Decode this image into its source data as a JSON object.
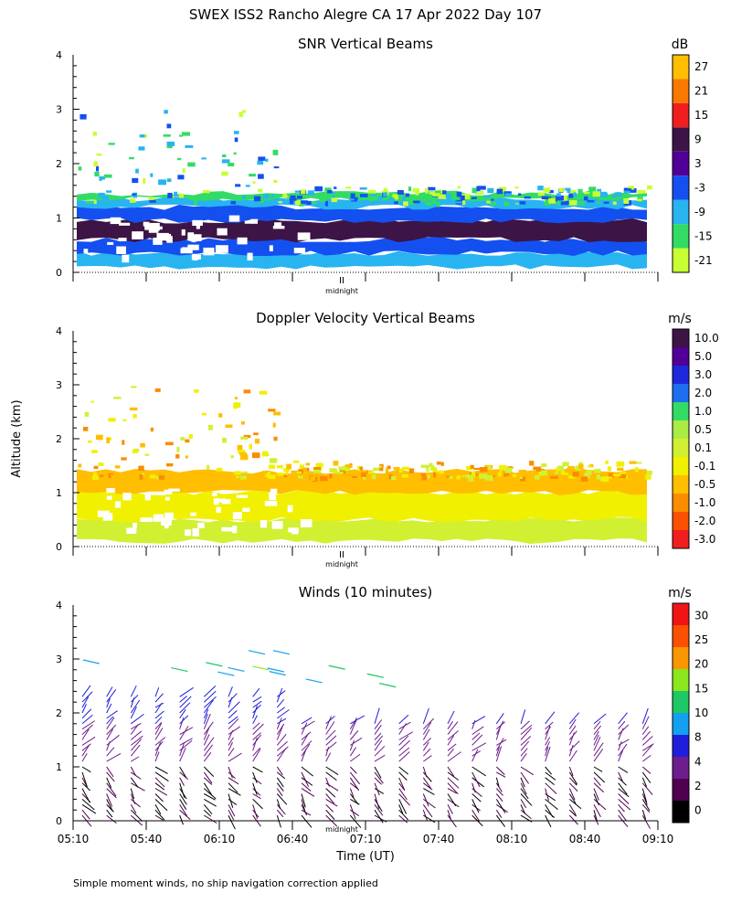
{
  "figure": {
    "title": "SWEX ISS2 Rancho Alegre CA  17 Apr 2022 Day 107",
    "ylabel": "Altitude (km)",
    "xlabel": "Time (UT)",
    "footnote": "Simple moment winds, no ship navigation correction applied",
    "midnight_label": "midnight",
    "midnight_marker": "II"
  },
  "chart_data": [
    {
      "type": "heatmap",
      "title": "SNR Vertical Beams",
      "ylabel": "Altitude (km)",
      "ylim": [
        0,
        4
      ],
      "yticks": [
        "0",
        "1",
        "2",
        "3",
        "4"
      ],
      "xlim_minutes_utc": [
        310,
        550
      ],
      "colorbar": {
        "unit": "dB",
        "colors": [
          "#c8ff32",
          "#32dc64",
          "#28b4f0",
          "#1450f0",
          "#500096",
          "#3c1446",
          "#f01e1e",
          "#fa7800",
          "#ffbe00"
        ],
        "labels": [
          "-21",
          "-15",
          "-9",
          "-3",
          "3",
          "9",
          "15",
          "21",
          "27"
        ]
      },
      "layers": [
        {
          "bottom_km": 0.1,
          "top_km": 0.35,
          "color": "#28b4f0"
        },
        {
          "bottom_km": 0.35,
          "top_km": 0.6,
          "color": "#1450f0"
        },
        {
          "bottom_km": 0.6,
          "top_km": 0.95,
          "color": "#3c1446"
        },
        {
          "bottom_km": 0.95,
          "top_km": 1.2,
          "color": "#1450f0"
        },
        {
          "bottom_km": 1.2,
          "top_km": 1.35,
          "color": "#28b4f0"
        },
        {
          "bottom_km": 1.35,
          "top_km": 1.45,
          "color": "#32dc64"
        }
      ]
    },
    {
      "type": "heatmap",
      "title": "Doppler Velocity Vertical Beams",
      "ylabel": "Altitude (km)",
      "ylim": [
        0,
        4
      ],
      "yticks": [
        "0",
        "1",
        "2",
        "3",
        "4"
      ],
      "xlim_minutes_utc": [
        310,
        550
      ],
      "colorbar": {
        "unit": "m/s",
        "colors": [
          "#f01e1e",
          "#fa5000",
          "#fa8c00",
          "#ffbe00",
          "#f0f000",
          "#d2f032",
          "#aaeb46",
          "#32dc64",
          "#1e6ef0",
          "#1e28dc",
          "#500096",
          "#3c1446"
        ],
        "labels": [
          "-3.0",
          "-2.0",
          "-1.0",
          "-0.5",
          "-0.1",
          "0.1",
          "0.5",
          "1.0",
          "2.0",
          "3.0",
          "5.0",
          "10.0"
        ]
      },
      "layers": [
        {
          "bottom_km": 0.1,
          "top_km": 0.5,
          "color": "#d2f032"
        },
        {
          "bottom_km": 0.5,
          "top_km": 1.0,
          "color": "#f0f000"
        },
        {
          "bottom_km": 1.0,
          "top_km": 1.4,
          "color": "#ffbe00"
        }
      ]
    },
    {
      "type": "wind_barbs",
      "title": "Winds (10 minutes)",
      "ylabel": "Altitude (km)",
      "xlabel": "Time (UT)",
      "ylim": [
        0,
        4
      ],
      "yticks": [
        "0",
        "1",
        "2",
        "3",
        "4"
      ],
      "xlim_minutes_utc": [
        310,
        550
      ],
      "xtick_labels": [
        "05:10",
        "05:40",
        "06:10",
        "06:40",
        "07:10",
        "07:40",
        "08:10",
        "08:40",
        "09:10"
      ],
      "colorbar": {
        "unit": "m/s",
        "colors": [
          "#000000",
          "#500050",
          "#6e1e8c",
          "#1e1edc",
          "#14a0f0",
          "#1ec864",
          "#8ce61e",
          "#fa9600",
          "#fa5000",
          "#f01414"
        ],
        "labels": [
          "0",
          "2",
          "4",
          "8",
          "10",
          "15",
          "20",
          "25",
          "30"
        ]
      },
      "profile_times_minutes_utc": [
        310,
        320,
        330,
        340,
        350,
        360,
        370,
        380,
        390,
        400,
        410,
        420,
        430,
        440,
        450,
        460,
        470,
        480,
        490,
        500,
        510,
        520,
        530,
        540,
        550
      ]
    }
  ]
}
